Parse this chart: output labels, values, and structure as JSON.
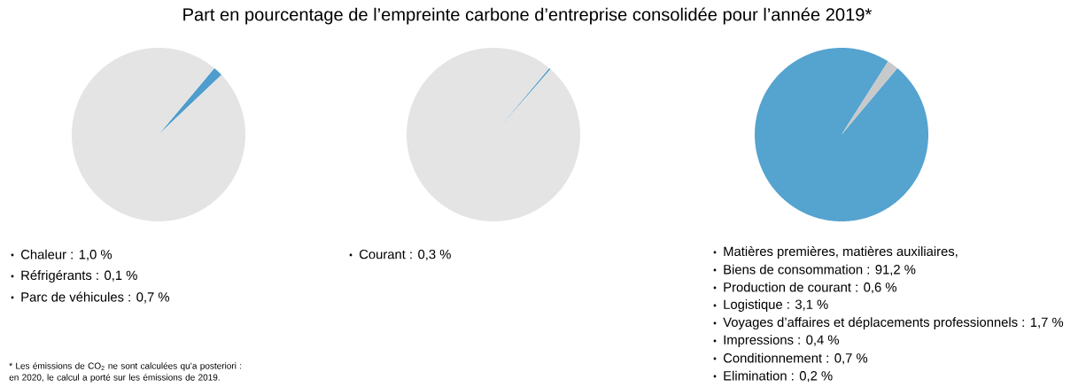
{
  "chart_data": [
    {
      "type": "pie",
      "title": "Part en pourcentage de l’empreinte carbone d’entreprise consolidée pour l’année 2019*",
      "categories": [
        null,
        null
      ],
      "values": [
        1.8,
        98.2
      ],
      "colors": [
        "#4e9dcd",
        "#e4e4e4"
      ],
      "annotations": [
        "Chaleur : 1,0 %",
        "Réfrigérants : 0,1 %",
        "Parc de véhicules : 0,7 %",
        "* Les émissions de CO$_{2}$ ne sont calculées qu’a posteriori : en 2020, le calcul a porté sur les émissions de 2019."
      ]
    },
    {
      "type": "pie",
      "categories": [
        null,
        null
      ],
      "values": [
        0.3,
        99.7
      ],
      "colors": [
        "#4e9dcd",
        "#e4e4e4"
      ],
      "annotations": [
        "Courant : 0,3 %"
      ]
    },
    {
      "type": "pie",
      "categories": [
        null,
        null
      ],
      "values": [
        97.9,
        2.1
      ],
      "colors": [
        "#55a3cf",
        "#c8c9cb"
      ],
      "annotations": [
        "Matières premières, matières auxiliaires,",
        "Biens de consommation : 91,2 %",
        "Production de courant : 0,6 %",
        "Logistique : 3,1 %",
        "Voyages d’affaires et déplacements professionnels : 1,7 %",
        "Impressions : 0,4 %",
        "Conditionnement : 0,7 %",
        "Elimination : 0,2 %"
      ]
    }
  ]
}
